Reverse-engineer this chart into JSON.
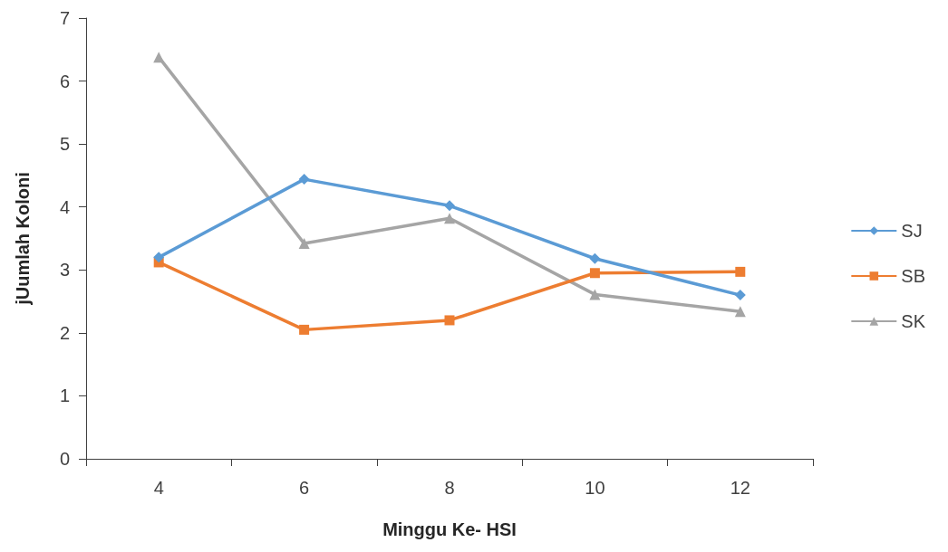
{
  "chart_data": {
    "type": "line",
    "xlabel": "Minggu Ke- HSI",
    "ylabel": "jUumlah Koloni",
    "categories": [
      "4",
      "6",
      "8",
      "10",
      "12"
    ],
    "series": [
      {
        "name": "SJ",
        "color": "#5b9bd5",
        "marker": "diamond",
        "values": [
          3.2,
          4.44,
          4.02,
          3.18,
          2.6
        ]
      },
      {
        "name": "SB",
        "color": "#ed7d31",
        "marker": "square",
        "values": [
          3.12,
          2.05,
          2.2,
          2.95,
          2.97
        ]
      },
      {
        "name": "SK",
        "color": "#a5a5a5",
        "marker": "triangle",
        "values": [
          6.38,
          3.42,
          3.82,
          2.61,
          2.34
        ]
      }
    ],
    "ylim": [
      0,
      7
    ],
    "yticks": [
      0,
      1,
      2,
      3,
      4,
      5,
      6,
      7
    ],
    "grid": false,
    "legend": "right"
  }
}
